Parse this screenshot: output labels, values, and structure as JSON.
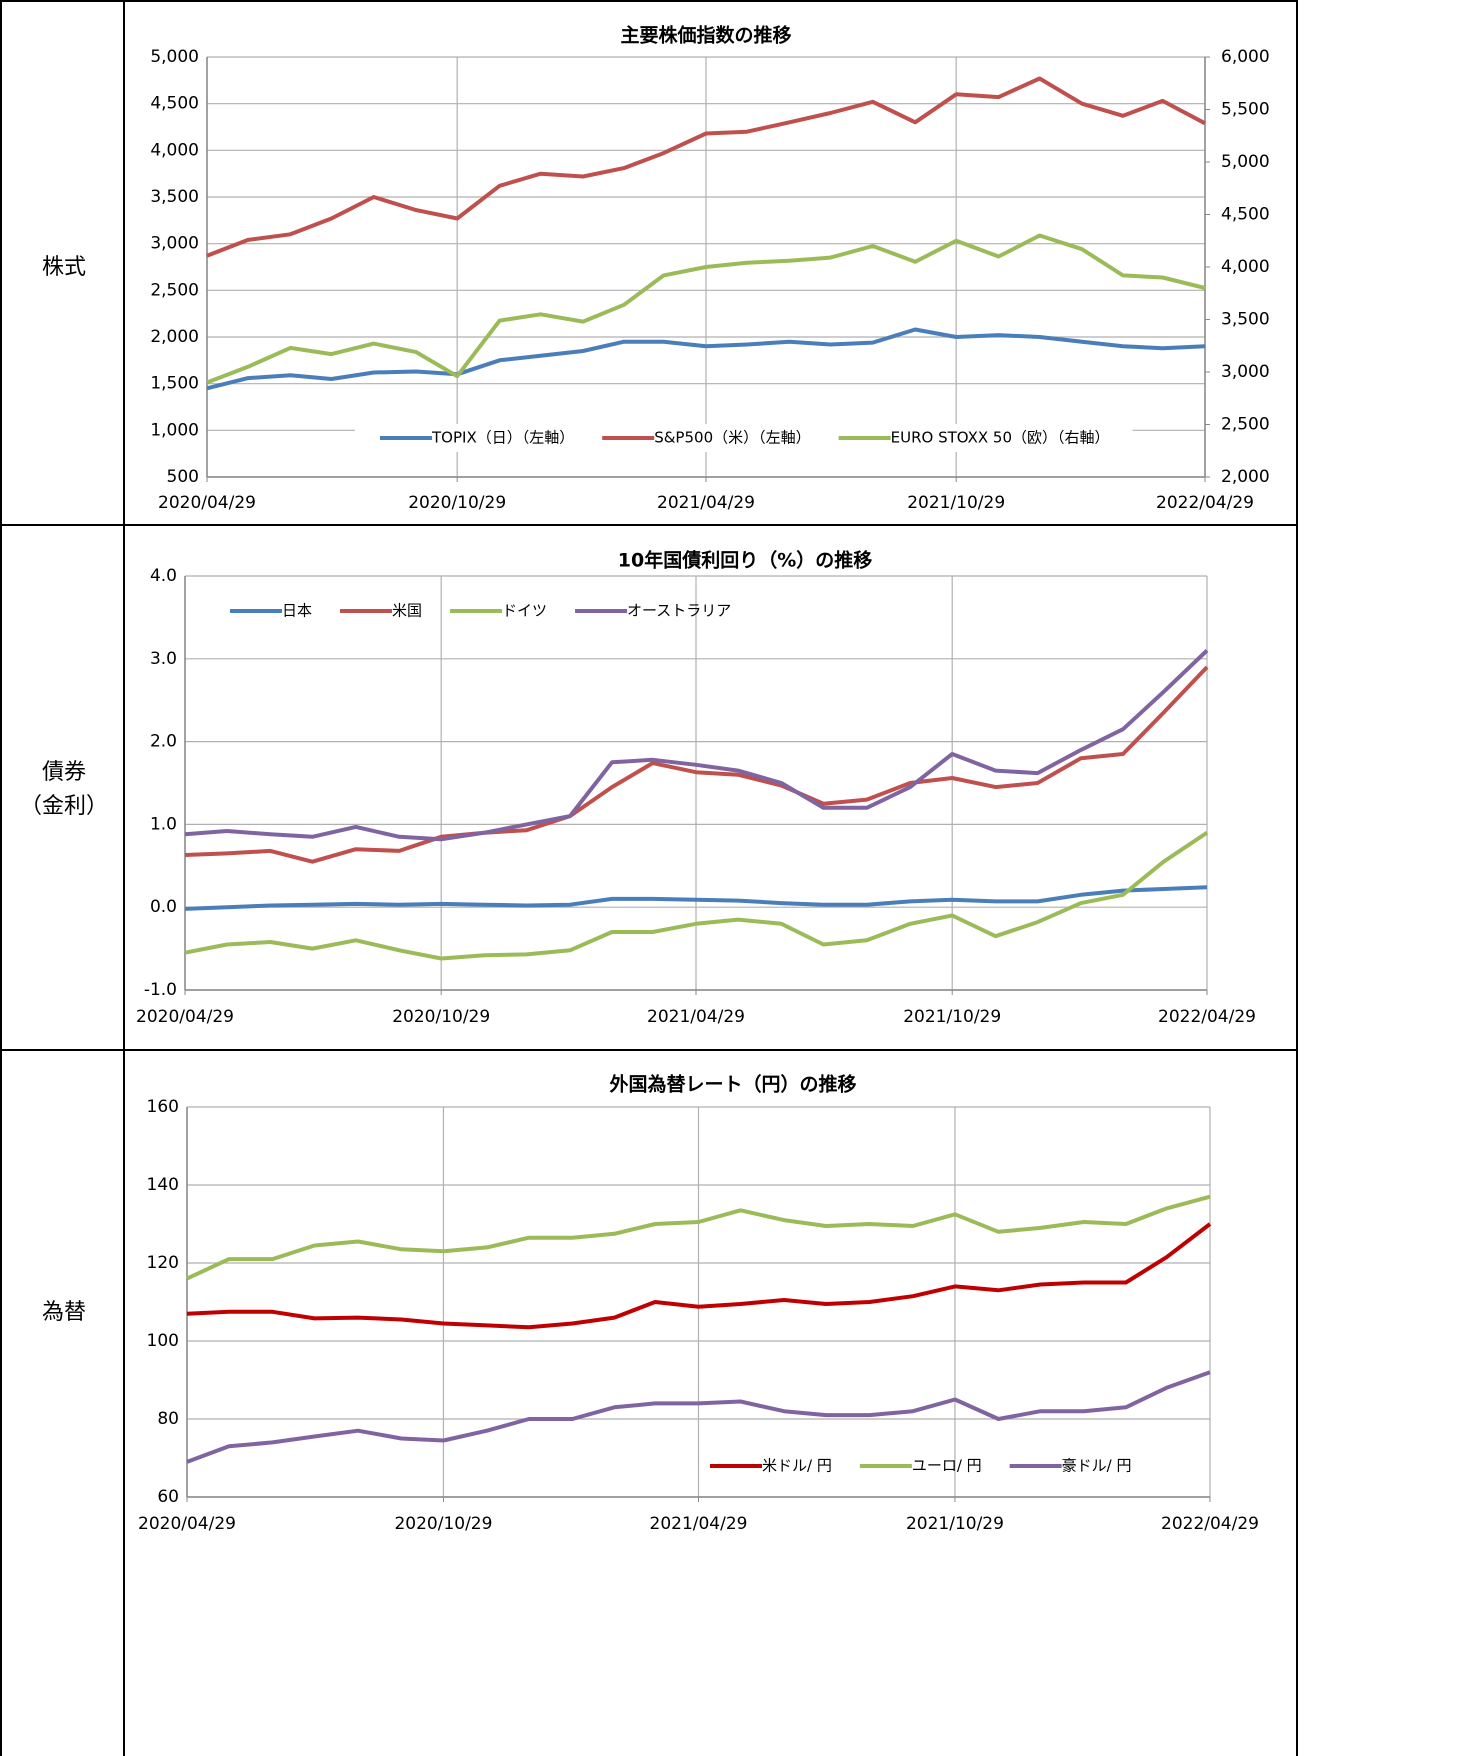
{
  "rows": [
    {
      "label_lines": [
        "株式"
      ]
    },
    {
      "label_lines": [
        "債券",
        "（金利）"
      ]
    },
    {
      "label_lines": [
        "為替"
      ]
    }
  ],
  "chart_data": [
    {
      "type": "line",
      "title": "主要株価指数の推移",
      "x": [
        "2020/04/29",
        "2020/05/29",
        "2020/06/29",
        "2020/07/29",
        "2020/08/29",
        "2020/09/29",
        "2020/10/29",
        "2020/11/29",
        "2020/12/29",
        "2021/01/29",
        "2021/02/28",
        "2021/03/29",
        "2021/04/29",
        "2021/05/29",
        "2021/06/29",
        "2021/07/29",
        "2021/08/29",
        "2021/09/29",
        "2021/10/29",
        "2021/11/29",
        "2021/12/29",
        "2022/01/29",
        "2022/02/28",
        "2022/03/29",
        "2022/04/29"
      ],
      "xlim": [
        "2020/04/29",
        "2022/04/29"
      ],
      "xticks": [
        "2020/04/29",
        "2020/10/29",
        "2021/04/29",
        "2021/10/29",
        "2022/04/29"
      ],
      "ylim": [
        500,
        5000
      ],
      "yticks": [
        {
          "value": 500,
          "label": "500"
        },
        {
          "value": 1000,
          "label": "1,000"
        },
        {
          "value": 1500,
          "label": "1,500"
        },
        {
          "value": 2000,
          "label": "2,000"
        },
        {
          "value": 2500,
          "label": "2,500"
        },
        {
          "value": 3000,
          "label": "3,000"
        },
        {
          "value": 3500,
          "label": "3,500"
        },
        {
          "value": 4000,
          "label": "4,000"
        },
        {
          "value": 4500,
          "label": "4,500"
        },
        {
          "value": 5000,
          "label": "5,000"
        }
      ],
      "y2lim": [
        2000,
        6000
      ],
      "y2ticks": [
        {
          "value": 2000,
          "label": "2,000"
        },
        {
          "value": 2500,
          "label": "2,500"
        },
        {
          "value": 3000,
          "label": "3,000"
        },
        {
          "value": 3500,
          "label": "3,500"
        },
        {
          "value": 4000,
          "label": "4,000"
        },
        {
          "value": 4500,
          "label": "4,500"
        },
        {
          "value": 5000,
          "label": "5,000"
        },
        {
          "value": 5500,
          "label": "5,500"
        },
        {
          "value": 6000,
          "label": "6,000"
        }
      ],
      "grid": true,
      "legend": "bottom",
      "series": [
        {
          "name": "TOPIX（日）（左軸）",
          "color": "#4a7ebb",
          "values": [
            1450,
            1560,
            1590,
            1550,
            1620,
            1630,
            1600,
            1750,
            1800,
            1850,
            1950,
            1950,
            1900,
            1920,
            1950,
            1920,
            1940,
            2080,
            2000,
            2020,
            2000,
            1950,
            1900,
            1880,
            1900
          ]
        },
        {
          "name": "S&P500（米）（左軸）",
          "color": "#c0504d",
          "values": [
            2870,
            3040,
            3100,
            3270,
            3500,
            3360,
            3270,
            3620,
            3750,
            3720,
            3810,
            3970,
            4180,
            4200,
            4300,
            4400,
            4520,
            4300,
            4600,
            4570,
            4770,
            4500,
            4370,
            4530,
            4290
          ]
        },
        {
          "name": "EURO STOXX 50（欧）（右軸）",
          "color": "#9bbb59",
          "axis": "y2",
          "values": [
            2900,
            3050,
            3230,
            3170,
            3270,
            3190,
            2960,
            3490,
            3550,
            3480,
            3640,
            3920,
            4000,
            4040,
            4060,
            4090,
            4200,
            4050,
            4250,
            4100,
            4300,
            4170,
            3920,
            3900,
            3800
          ]
        }
      ]
    },
    {
      "type": "line",
      "title": "10年国債利回り（%）の推移",
      "x": [
        "2020/04/29",
        "2020/05/29",
        "2020/06/29",
        "2020/07/29",
        "2020/08/29",
        "2020/09/29",
        "2020/10/29",
        "2020/11/29",
        "2020/12/29",
        "2021/01/29",
        "2021/02/28",
        "2021/03/29",
        "2021/04/29",
        "2021/05/29",
        "2021/06/29",
        "2021/07/29",
        "2021/08/29",
        "2021/09/29",
        "2021/10/29",
        "2021/11/29",
        "2021/12/29",
        "2022/01/29",
        "2022/02/28",
        "2022/03/29",
        "2022/04/29"
      ],
      "xlim": [
        "2020/04/29",
        "2022/04/29"
      ],
      "xticks": [
        "2020/04/29",
        "2020/10/29",
        "2021/04/29",
        "2021/10/29",
        "2022/04/29"
      ],
      "ylim": [
        -1,
        4
      ],
      "yticks": [
        {
          "value": -1,
          "label": "-1.0"
        },
        {
          "value": 0,
          "label": "0.0"
        },
        {
          "value": 1,
          "label": "1.0"
        },
        {
          "value": 2,
          "label": "2.0"
        },
        {
          "value": 3,
          "label": "3.0"
        },
        {
          "value": 4,
          "label": "4.0"
        }
      ],
      "grid": true,
      "legend": "top-left",
      "series": [
        {
          "name": "日本",
          "color": "#4a7ebb",
          "values": [
            -0.02,
            0.0,
            0.02,
            0.03,
            0.04,
            0.03,
            0.04,
            0.03,
            0.02,
            0.03,
            0.1,
            0.1,
            0.09,
            0.08,
            0.05,
            0.03,
            0.03,
            0.07,
            0.09,
            0.07,
            0.07,
            0.15,
            0.2,
            0.22,
            0.24
          ]
        },
        {
          "name": "米国",
          "color": "#c0504d",
          "values": [
            0.63,
            0.65,
            0.68,
            0.55,
            0.7,
            0.68,
            0.85,
            0.9,
            0.93,
            1.1,
            1.45,
            1.74,
            1.63,
            1.6,
            1.47,
            1.25,
            1.3,
            1.5,
            1.56,
            1.45,
            1.5,
            1.8,
            1.85,
            2.35,
            2.9
          ]
        },
        {
          "name": "ドイツ",
          "color": "#9bbb59",
          "values": [
            -0.55,
            -0.45,
            -0.42,
            -0.5,
            -0.4,
            -0.52,
            -0.62,
            -0.58,
            -0.57,
            -0.52,
            -0.3,
            -0.3,
            -0.2,
            -0.15,
            -0.2,
            -0.45,
            -0.4,
            -0.2,
            -0.1,
            -0.35,
            -0.18,
            0.05,
            0.15,
            0.55,
            0.9
          ]
        },
        {
          "name": "オーストラリア",
          "color": "#8064a2",
          "values": [
            0.88,
            0.92,
            0.88,
            0.85,
            0.97,
            0.85,
            0.82,
            0.9,
            1.0,
            1.1,
            1.75,
            1.78,
            1.72,
            1.65,
            1.5,
            1.2,
            1.2,
            1.45,
            1.85,
            1.65,
            1.62,
            1.9,
            2.15,
            2.6,
            3.1
          ]
        }
      ]
    },
    {
      "type": "line",
      "title": "外国為替レート（円）の推移",
      "x": [
        "2020/04/29",
        "2020/05/29",
        "2020/06/29",
        "2020/07/29",
        "2020/08/29",
        "2020/09/29",
        "2020/10/29",
        "2020/11/29",
        "2020/12/29",
        "2021/01/29",
        "2021/02/28",
        "2021/03/29",
        "2021/04/29",
        "2021/05/29",
        "2021/06/29",
        "2021/07/29",
        "2021/08/29",
        "2021/09/29",
        "2021/10/29",
        "2021/11/29",
        "2021/12/29",
        "2022/01/29",
        "2022/02/28",
        "2022/03/29",
        "2022/04/29"
      ],
      "xlim": [
        "2020/04/29",
        "2022/04/29"
      ],
      "xticks": [
        "2020/04/29",
        "2020/10/29",
        "2021/04/29",
        "2021/10/29",
        "2022/04/29"
      ],
      "ylim": [
        60,
        160
      ],
      "yticks": [
        60,
        80,
        100,
        120,
        140,
        160
      ],
      "grid": true,
      "legend": "bottom-right",
      "series": [
        {
          "name": "米ドル/ 円",
          "color": "#c00000",
          "values": [
            107,
            107.5,
            107.5,
            105.8,
            106,
            105.5,
            104.5,
            104,
            103.5,
            104.5,
            106,
            110,
            108.8,
            109.5,
            110.5,
            109.5,
            110,
            111.5,
            114,
            113,
            114.5,
            115,
            115,
            121.5,
            130
          ]
        },
        {
          "name": "ユーロ/ 円",
          "color": "#9bbb59",
          "values": [
            116,
            121,
            121,
            124.5,
            125.5,
            123.5,
            123,
            124,
            126.5,
            126.5,
            127.5,
            130,
            130.5,
            133.5,
            131,
            129.5,
            130,
            129.5,
            132.5,
            128,
            129,
            130.5,
            130,
            134,
            137
          ]
        },
        {
          "name": "豪ドル/ 円",
          "color": "#8064a2",
          "values": [
            69,
            73,
            74,
            75.5,
            77,
            75,
            74.5,
            77,
            80,
            80,
            83,
            84,
            84,
            84.5,
            82,
            81,
            81,
            82,
            85,
            80,
            82,
            82,
            83,
            88,
            92
          ]
        }
      ]
    }
  ]
}
